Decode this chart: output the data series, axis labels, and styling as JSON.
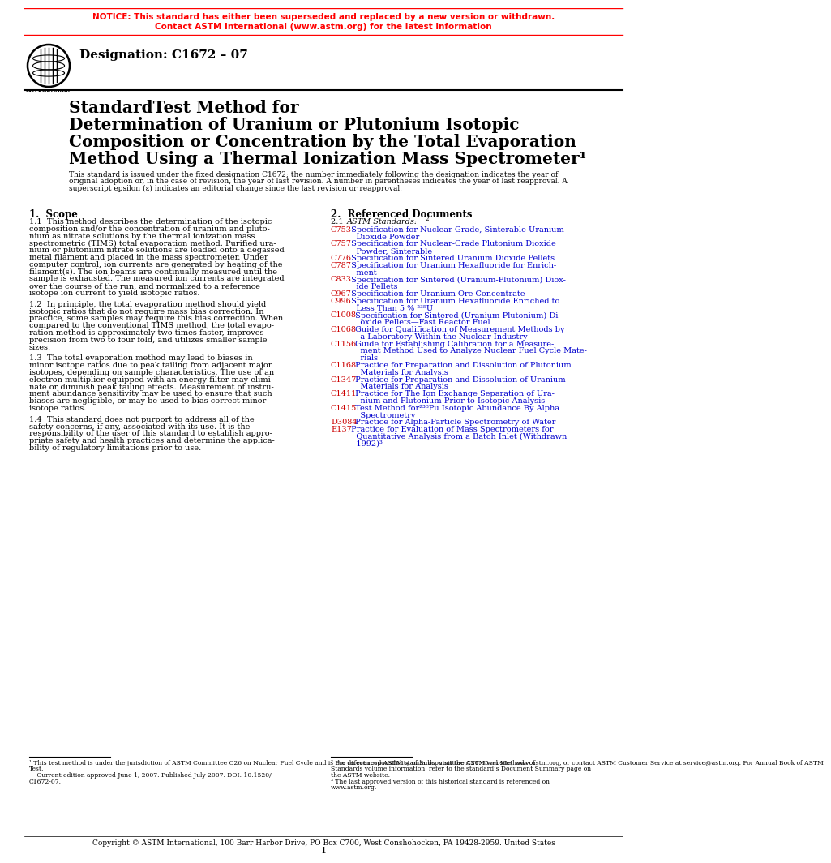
{
  "notice_line1": "NOTICE: This standard has either been superseded and replaced by a new version or withdrawn.",
  "notice_line2": "Contact ASTM International (www.astm.org) for the latest information",
  "notice_color": "#FF0000",
  "designation": "Designation: C1672 – 07",
  "main_title_lines": [
    "StandardTest Method for",
    "Determination of Uranium or Plutonium Isotopic",
    "Composition or Concentration by the Total Evaporation",
    "Method Using a Thermal Ionization Mass Spectrometer¹"
  ],
  "intro_text_lines": [
    "This standard is issued under the fixed designation C1672; the number immediately following the designation indicates the year of",
    "original adoption or, in the case of revision, the year of last revision. A number in parentheses indicates the year of last reapproval. A",
    "superscript epsilon (ε) indicates an editorial change since the last revision or reapproval."
  ],
  "section1_title": "1.  Scope",
  "section1_paragraphs": [
    [
      "1.1  This method describes the determination of the isotopic",
      "composition and/or the concentration of uranium and pluto-",
      "nium as nitrate solutions by the thermal ionization mass",
      "spectrometric (TIMS) total evaporation method. Purified ura-",
      "nium or plutonium nitrate solutions are loaded onto a degassed",
      "metal filament and placed in the mass spectrometer. Under",
      "computer control, ion currents are generated by heating of the",
      "filament(s). The ion beams are continually measured until the",
      "sample is exhausted. The measured ion currents are integrated",
      "over the course of the run, and normalized to a reference",
      "isotope ion current to yield isotopic ratios."
    ],
    [
      "1.2  In principle, the total evaporation method should yield",
      "isotopic ratios that do not require mass bias correction. In",
      "practice, some samples may require this bias correction. When",
      "compared to the conventional TIMS method, the total evapo-",
      "ration method is approximately two times faster, improves",
      "precision from two to four fold, and utilizes smaller sample",
      "sizes."
    ],
    [
      "1.3  The total evaporation method may lead to biases in",
      "minor isotope ratios due to peak tailing from adjacent major",
      "isotopes, depending on sample characteristics. The use of an",
      "electron multiplier equipped with an energy filter may elimi-",
      "nate or diminish peak tailing effects. Measurement of instru-",
      "ment abundance sensitivity may be used to ensure that such",
      "biases are negligible, or may be used to bias correct minor",
      "isotope ratios."
    ],
    [
      "1.4  This standard does not purport to address all of the",
      "safety concerns, if any, associated with its use. It is the",
      "responsibility of the user of this standard to establish appro-",
      "priate safety and health practices and determine the applica-",
      "bility of regulatory limitations prior to use."
    ]
  ],
  "section2_title": "2.  Referenced Documents",
  "references": [
    {
      "code": "C753",
      "lines": [
        "Specification for Nuclear-Grade, Sinterable Uranium",
        "Dioxide Powder"
      ]
    },
    {
      "code": "C757",
      "lines": [
        "Specification for Nuclear-Grade Plutonium Dioxide",
        "Powder, Sinterable"
      ]
    },
    {
      "code": "C776",
      "lines": [
        "Specification for Sintered Uranium Dioxide Pellets"
      ]
    },
    {
      "code": "C787",
      "lines": [
        "Specification for Uranium Hexafluoride for Enrich-",
        "ment"
      ]
    },
    {
      "code": "C833",
      "lines": [
        "Specification for Sintered (Uranium-Plutonium) Diox-",
        "ide Pellets"
      ]
    },
    {
      "code": "C967",
      "lines": [
        "Specification for Uranium Ore Concentrate"
      ]
    },
    {
      "code": "C996",
      "lines": [
        "Specification for Uranium Hexafluoride Enriched to",
        "Less Than 5 % ²³⁵U"
      ]
    },
    {
      "code": "C1008",
      "lines": [
        "Specification for Sintered (Uranium-Plutonium) Di-",
        "oxide Pellets—Fast Reactor Fuel"
      ]
    },
    {
      "code": "C1068",
      "lines": [
        "Guide for Qualification of Measurement Methods by",
        "a Laboratory Within the Nuclear Industry"
      ]
    },
    {
      "code": "C1156",
      "lines": [
        "Guide for Establishing Calibration for a Measure-",
        "ment Method Used to Analyze Nuclear Fuel Cycle Mate-",
        "rials"
      ]
    },
    {
      "code": "C1168",
      "lines": [
        "Practice for Preparation and Dissolution of Plutonium",
        "Materials for Analysis"
      ]
    },
    {
      "code": "C1347",
      "lines": [
        "Practice for Preparation and Dissolution of Uranium",
        "Materials for Analysis"
      ]
    },
    {
      "code": "C1411",
      "lines": [
        "Practice for The Ion Exchange Separation of Ura-",
        "nium and Plutonium Prior to Isotopic Analysis"
      ]
    },
    {
      "code": "C1415",
      "lines": [
        "Test Method for²³⁸Pu Isotopic Abundance By Alpha",
        "Spectrometry"
      ]
    },
    {
      "code": "D3084",
      "lines": [
        "Practice for Alpha-Particle Spectrometry of Water"
      ]
    },
    {
      "code": "E137",
      "lines": [
        "Practice for Evaluation of Mass Spectrometers for",
        "Quantitative Analysis from a Batch Inlet (Withdrawn",
        "1992)³"
      ]
    }
  ],
  "footnote1_lines": [
    "¹ This test method is under the jurisdiction of ASTM Committee C26 on Nuclear Fuel Cycle and is the direct responsibility of Subcommittee C26.05 on Methods of",
    "Test.",
    "    Current edition approved June 1, 2007. Published July 2007. DOI: 10.1520/",
    "C1672-07."
  ],
  "footnote2_lines": [
    "² For referenced ASTM standards, visit the ASTM website, www.astm.org, or contact ASTM Customer Service at service@astm.org. For Annual Book of ASTM",
    "Standards volume information, refer to the standard’s Document Summary page on",
    "the ASTM website.",
    "³ The last approved version of this historical standard is referenced on",
    "www.astm.org."
  ],
  "footer": "Copyright © ASTM International, 100 Barr Harbor Drive, PO Box C700, West Conshohocken, PA 19428-2959. United States",
  "page_number": "1",
  "ref_color": "#0000CD",
  "code_color": "#CC0000",
  "text_color": "#000000",
  "bg_color": "#FFFFFF"
}
